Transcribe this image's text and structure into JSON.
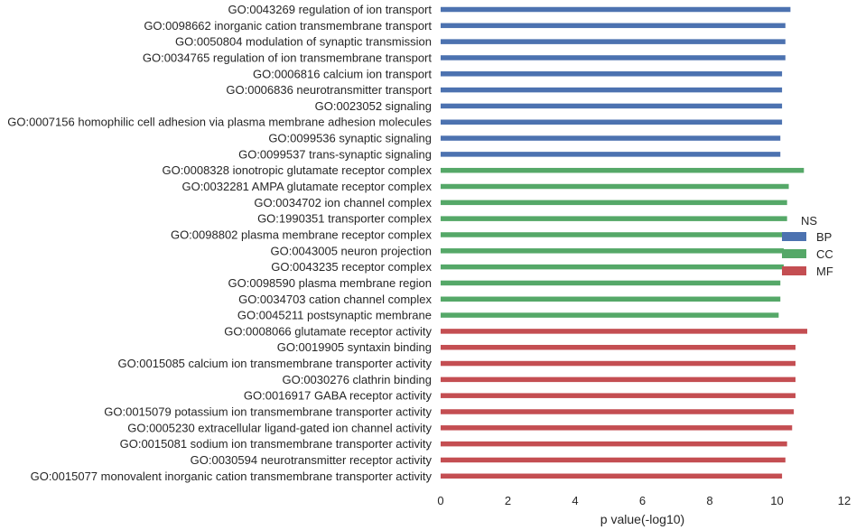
{
  "chart_data": {
    "type": "bar",
    "orientation": "horizontal",
    "xlabel": "p value(-log10)",
    "ylabel": "",
    "xlim": [
      0,
      12
    ],
    "xticks": [
      0,
      2,
      4,
      6,
      8,
      10,
      12
    ],
    "grid": false,
    "legend": {
      "title": "NS",
      "placement": "right",
      "entries": [
        {
          "name": "BP",
          "color": "#4c72b0"
        },
        {
          "name": "CC",
          "color": "#55a868"
        },
        {
          "name": "MF",
          "color": "#c44e52"
        }
      ]
    },
    "categories": [
      "GO:0043269 regulation of ion transport",
      "GO:0098662 inorganic cation transmembrane transport",
      "GO:0050804 modulation of synaptic transmission",
      "GO:0034765 regulation of ion transmembrane transport",
      "GO:0006816 calcium ion transport",
      "GO:0006836 neurotransmitter transport",
      "GO:0023052 signaling",
      "GO:0007156 homophilic cell adhesion via plasma membrane adhesion molecules",
      "GO:0099536 synaptic signaling",
      "GO:0099537 trans-synaptic signaling",
      "GO:0008328 ionotropic glutamate receptor complex",
      "GO:0032281 AMPA glutamate receptor complex",
      "GO:0034702 ion channel complex",
      "GO:1990351 transporter complex",
      "GO:0098802 plasma membrane receptor complex",
      "GO:0043005 neuron projection",
      "GO:0043235 receptor complex",
      "GO:0098590 plasma membrane region",
      "GO:0034703 cation channel complex",
      "GO:0045211 postsynaptic membrane",
      "GO:0008066 glutamate receptor activity",
      "GO:0019905 syntaxin binding",
      "GO:0015085 calcium ion transmembrane transporter activity",
      "GO:0030276 clathrin binding",
      "GO:0016917 GABA receptor activity",
      "GO:0015079 potassium ion transmembrane transporter activity",
      "GO:0005230 extracellular ligand-gated ion channel activity",
      "GO:0015081 sodium ion transmembrane transporter activity",
      "GO:0030594 neurotransmitter receptor activity",
      "GO:0015077 monovalent inorganic cation transmembrane transporter activity"
    ],
    "values": [
      10.4,
      10.25,
      10.25,
      10.25,
      10.15,
      10.15,
      10.15,
      10.15,
      10.1,
      10.1,
      10.8,
      10.35,
      10.3,
      10.3,
      10.2,
      10.2,
      10.2,
      10.1,
      10.1,
      10.05,
      10.9,
      10.55,
      10.55,
      10.55,
      10.55,
      10.5,
      10.45,
      10.3,
      10.25,
      10.15
    ],
    "groups": [
      "BP",
      "BP",
      "BP",
      "BP",
      "BP",
      "BP",
      "BP",
      "BP",
      "BP",
      "BP",
      "CC",
      "CC",
      "CC",
      "CC",
      "CC",
      "CC",
      "CC",
      "CC",
      "CC",
      "CC",
      "MF",
      "MF",
      "MF",
      "MF",
      "MF",
      "MF",
      "MF",
      "MF",
      "MF",
      "MF"
    ]
  }
}
